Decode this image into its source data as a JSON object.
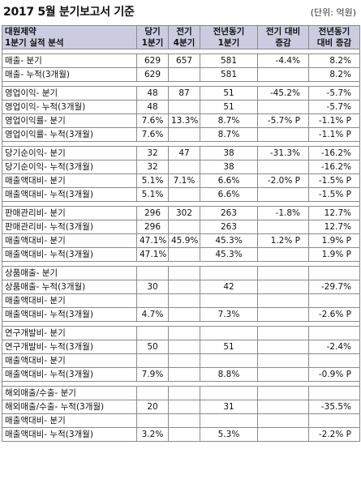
{
  "title": "2017 5월 분기보고서 기준",
  "unit": "(단위: 억원)",
  "header": {
    "company": "대원제약",
    "subtitle": "1분기 실적 분석",
    "cols": [
      [
        "당기",
        "1분기"
      ],
      [
        "전기",
        "4분기"
      ],
      [
        "전년동기",
        "1분기"
      ],
      [
        "전기 대비",
        "증감"
      ],
      [
        "전년동기",
        "대비 증감"
      ]
    ]
  },
  "groups": [
    {
      "rows": [
        [
          "매출- 분기",
          "629",
          "657",
          "581",
          "-4.4%",
          "8.2%"
        ],
        [
          "매출- 누적(3개월)",
          "629",
          "",
          "581",
          "",
          "8.2%"
        ]
      ]
    },
    {
      "rows": [
        [
          "영업이익- 분기",
          "48",
          "87",
          "51",
          "-45.2%",
          "-5.7%"
        ],
        [
          "영업이익- 누적(3개월)",
          "48",
          "",
          "51",
          "",
          "-5.7%"
        ],
        [
          "영업이익률- 분기",
          "7.6%",
          "13.3%",
          "8.7%",
          "-5.7% P",
          "-1.1% P"
        ],
        [
          "영업이익률- 누적(3개월)",
          "7.6%",
          "",
          "8.7%",
          "",
          "-1.1% P"
        ]
      ]
    },
    {
      "rows": [
        [
          "당기순이익- 분기",
          "32",
          "47",
          "38",
          "-31.3%",
          "-16.2%"
        ],
        [
          "당기순이익- 누적(3개월)",
          "32",
          "",
          "38",
          "",
          "-16.2%"
        ],
        [
          "매출액대비- 분기",
          "5.1%",
          "7.1%",
          "6.6%",
          "-2.0% P",
          "-1.5% P"
        ],
        [
          "매출액대비- 누적(3개월)",
          "5.1%",
          "",
          "6.6%",
          "",
          "-1.5% P"
        ]
      ]
    },
    {
      "rows": [
        [
          "판매관리비- 분기",
          "296",
          "302",
          "263",
          "-1.8%",
          "12.7%"
        ],
        [
          "판매관리비- 누적(3개월)",
          "296",
          "",
          "263",
          "",
          "12.7%"
        ],
        [
          "매출액대비- 분기",
          "47.1%",
          "45.9%",
          "45.3%",
          "1.2% P",
          "1.9% P"
        ],
        [
          "매출액대비- 누적(3개월)",
          "47.1%",
          "",
          "45.3%",
          "",
          "1.9% P"
        ]
      ]
    },
    {
      "rows": [
        [
          "상품매출- 분기",
          "",
          "",
          "",
          "",
          ""
        ],
        [
          "상품매출- 누적(3개월)",
          "30",
          "",
          "42",
          "",
          "-29.7%"
        ],
        [
          "매출액대비- 분기",
          "",
          "",
          "",
          "",
          ""
        ],
        [
          "매출액대비- 누적(3개월)",
          "4.7%",
          "",
          "7.3%",
          "",
          "-2.6% P"
        ]
      ]
    },
    {
      "rows": [
        [
          "연구개발비- 분기",
          "",
          "",
          "",
          "",
          ""
        ],
        [
          "연구개발비- 누적(3개월)",
          "50",
          "",
          "51",
          "",
          "-2.4%"
        ],
        [
          "매출액대비- 분기",
          "",
          "",
          "",
          "",
          ""
        ],
        [
          "매출액대비- 누적(3개월)",
          "7.9%",
          "",
          "8.8%",
          "",
          "-0.9% P"
        ]
      ]
    },
    {
      "rows": [
        [
          "해외매출/수출- 분기",
          "",
          "",
          "",
          "",
          ""
        ],
        [
          "해외매출/수출- 누적(3개월)",
          "20",
          "",
          "31",
          "",
          "-35.5%"
        ],
        [
          "매출액대비- 분기",
          "",
          "",
          "",
          "",
          ""
        ],
        [
          "매출액대비- 누적(3개월)",
          "3.2%",
          "",
          "5.3%",
          "",
          "-2.2% P"
        ]
      ]
    }
  ]
}
